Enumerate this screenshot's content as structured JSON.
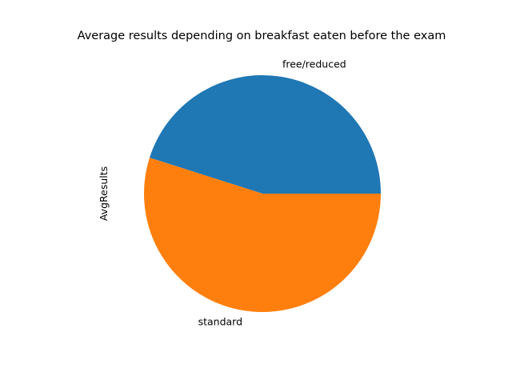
{
  "chart_data": {
    "type": "pie",
    "title": "Average results depending on breakfast eaten before the exam",
    "ylabel": "AvgResults",
    "categories": [
      "free/reduced",
      "standard"
    ],
    "values": [
      45.1,
      54.9
    ],
    "colors": [
      "#1f77b4",
      "#ff7f0e"
    ],
    "legend": "none"
  }
}
